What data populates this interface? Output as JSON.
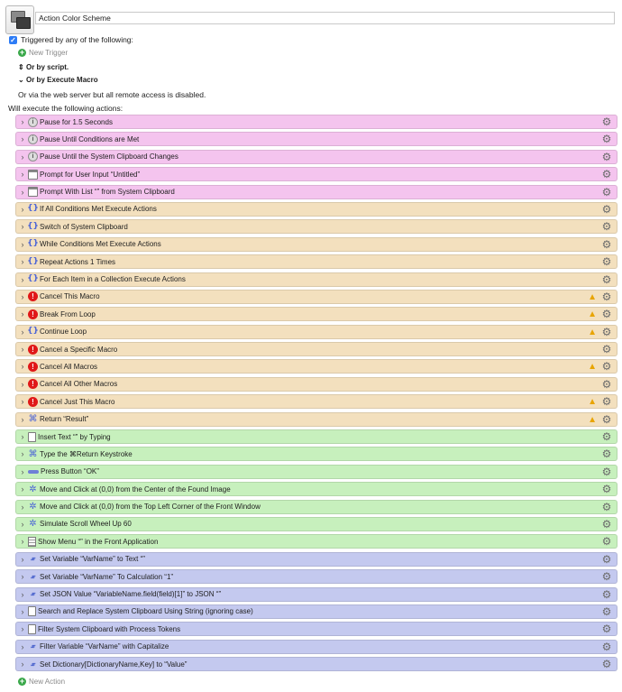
{
  "macro": {
    "title": "Action Color Scheme"
  },
  "triggers": {
    "triggered_label": "Triggered by any of the following:",
    "new_trigger": "New Trigger",
    "or_script": "Or by script.",
    "or_execute_macro": "Or by Execute Macro",
    "web_server_note": "Or via the web server but all remote access is disabled."
  },
  "actions_header": "Will execute the following actions:",
  "actions": [
    {
      "label": "Pause for 1.5 Seconds",
      "color": "#f4c4ee",
      "icon": "pause-icon",
      "warning": false
    },
    {
      "label": "Pause Until Conditions are Met",
      "color": "#f4c4ee",
      "icon": "pause-icon",
      "warning": false
    },
    {
      "label": "Pause Until the System Clipboard Changes",
      "color": "#f4c4ee",
      "icon": "pause-icon",
      "warning": false
    },
    {
      "label": "Prompt for User Input “Untitled”",
      "color": "#f4c4ee",
      "icon": "prompt-window-icon",
      "warning": false
    },
    {
      "label": "Prompt With List “” from System Clipboard",
      "color": "#f4c4ee",
      "icon": "prompt-window-icon",
      "warning": false
    },
    {
      "label": "If All Conditions Met Execute Actions",
      "color": "#f3e0be",
      "icon": "braces-icon",
      "warning": false
    },
    {
      "label": "Switch of System Clipboard",
      "color": "#f3e0be",
      "icon": "braces-icon",
      "warning": false
    },
    {
      "label": "While Conditions Met Execute Actions",
      "color": "#f3e0be",
      "icon": "braces-icon",
      "warning": false
    },
    {
      "label": "Repeat Actions 1 Times",
      "color": "#f3e0be",
      "icon": "braces-icon",
      "warning": false
    },
    {
      "label": "For Each Item in a Collection Execute Actions",
      "color": "#f3e0be",
      "icon": "braces-icon",
      "warning": false
    },
    {
      "label": "Cancel This Macro",
      "color": "#f3e0be",
      "icon": "cancel-icon",
      "warning": true
    },
    {
      "label": "Break From Loop",
      "color": "#f3e0be",
      "icon": "cancel-icon",
      "warning": true
    },
    {
      "label": "Continue Loop",
      "color": "#f3e0be",
      "icon": "braces-icon",
      "warning": true
    },
    {
      "label": "Cancel a Specific Macro",
      "color": "#f3e0be",
      "icon": "cancel-icon",
      "warning": false
    },
    {
      "label": "Cancel All Macros",
      "color": "#f3e0be",
      "icon": "cancel-icon",
      "warning": true
    },
    {
      "label": "Cancel All Other Macros",
      "color": "#f3e0be",
      "icon": "cancel-icon",
      "warning": false
    },
    {
      "label": "Cancel Just This Macro",
      "color": "#f3e0be",
      "icon": "cancel-icon",
      "warning": true
    },
    {
      "label": "Return “Result”",
      "color": "#f3e0be",
      "icon": "command-icon",
      "warning": true
    },
    {
      "label": "Insert Text “” by Typing",
      "color": "#c7f0bd",
      "icon": "document-icon",
      "warning": false
    },
    {
      "label": "Type the ⌘Return Keystroke",
      "color": "#c7f0bd",
      "icon": "command-icon",
      "warning": false
    },
    {
      "label": "Press Button “OK”",
      "color": "#c7f0bd",
      "icon": "button-icon",
      "warning": false
    },
    {
      "label": "Move and Click at (0,0) from the Center of the Found Image",
      "color": "#c7f0bd",
      "icon": "click-icon",
      "warning": false
    },
    {
      "label": "Move and Click at (0,0) from the Top Left Corner of the Front Window",
      "color": "#c7f0bd",
      "icon": "click-icon",
      "warning": false
    },
    {
      "label": "Simulate Scroll Wheel Up 60",
      "color": "#c7f0bd",
      "icon": "click-icon",
      "warning": false
    },
    {
      "label": "Show Menu “” in the Front Application",
      "color": "#c7f0bd",
      "icon": "menu-icon",
      "warning": false
    },
    {
      "label": "Set Variable “VarName” to Text “”",
      "color": "#c4c9ef",
      "icon": "variable-icon",
      "warning": false
    },
    {
      "label": "Set Variable “VarName” To Calculation “1”",
      "color": "#c4c9ef",
      "icon": "variable-icon",
      "warning": false
    },
    {
      "label": "Set JSON Value “VariableName.field(field)[1]” to JSON “”",
      "color": "#c4c9ef",
      "icon": "variable-icon",
      "warning": false
    },
    {
      "label": "Search and Replace System Clipboard Using String (ignoring case)",
      "color": "#c4c9ef",
      "icon": "document-icon",
      "warning": false
    },
    {
      "label": "Filter System Clipboard with Process Tokens",
      "color": "#c4c9ef",
      "icon": "document-icon",
      "warning": false
    },
    {
      "label": "Filter Variable “VarName” with Capitalize",
      "color": "#c4c9ef",
      "icon": "variable-icon",
      "warning": false
    },
    {
      "label": "Set Dictionary[DictionaryName,Key] to “Value”",
      "color": "#c4c9ef",
      "icon": "variable-icon",
      "warning": false
    }
  ],
  "new_action": "New Action"
}
